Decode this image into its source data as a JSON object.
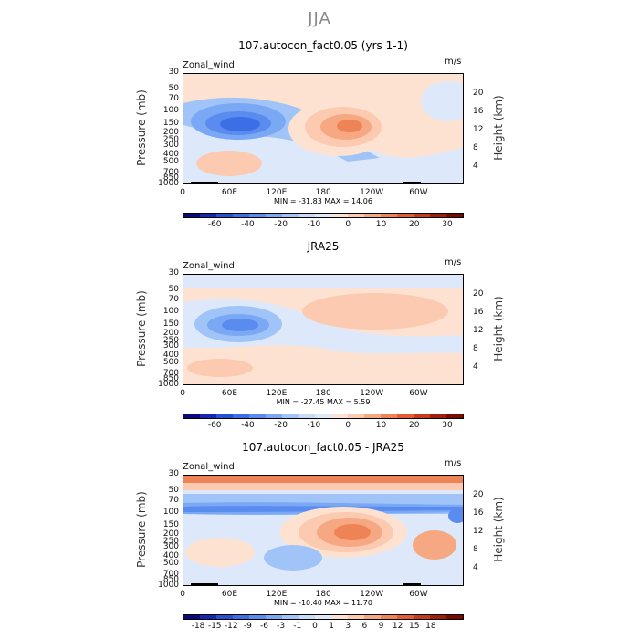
{
  "figure_title": "JJA",
  "chart_data": [
    {
      "type": "heatmap",
      "title": "107.autocon_fact0.05 (yrs 1-1)",
      "variable": "Zonal_wind",
      "units": "m/s",
      "ylabel": "Pressure (mb)",
      "y2label": "Height (km)",
      "x_ticks": [
        "0",
        "60E",
        "120E",
        "180",
        "120W",
        "60W"
      ],
      "y_ticks": [
        "30",
        "50",
        "70",
        "100",
        "150",
        "200",
        "250",
        "300",
        "400",
        "500",
        "700",
        "850",
        "1000"
      ],
      "y2_ticks": [
        "20",
        "16",
        "12",
        "8",
        "4"
      ],
      "min_max_label": "MIN = -31.83   MAX =  14.06",
      "min": -31.83,
      "max": 14.06,
      "colorbar_levels": [
        "-60",
        "-40",
        "-20",
        "-10",
        "0",
        "10",
        "20",
        "30"
      ],
      "colorbar_colors": [
        "#0a0a78",
        "#1428b4",
        "#2850d2",
        "#3c6ee6",
        "#5a8cf0",
        "#7aa8f5",
        "#a0c4f8",
        "#c8dcfa",
        "#dde9fb",
        "#fde2d2",
        "#fbcab0",
        "#f6a882",
        "#ee8456",
        "#e35c32",
        "#c83a1c",
        "#a01e0a",
        "#780a00"
      ]
    },
    {
      "type": "heatmap",
      "title": "JRA25",
      "variable": "Zonal_wind",
      "units": "m/s",
      "ylabel": "Pressure (mb)",
      "y2label": "Height (km)",
      "x_ticks": [
        "0",
        "60E",
        "120E",
        "180",
        "120W",
        "60W"
      ],
      "y_ticks": [
        "30",
        "50",
        "70",
        "100",
        "150",
        "200",
        "250",
        "300",
        "400",
        "500",
        "700",
        "850",
        "1000"
      ],
      "y2_ticks": [
        "20",
        "16",
        "12",
        "8",
        "4"
      ],
      "min_max_label": "MIN = -27.45   MAX =   5.59",
      "min": -27.45,
      "max": 5.59,
      "colorbar_levels": [
        "-60",
        "-40",
        "-20",
        "-10",
        "0",
        "10",
        "20",
        "30"
      ],
      "colorbar_colors": [
        "#0a0a78",
        "#1428b4",
        "#2850d2",
        "#3c6ee6",
        "#5a8cf0",
        "#7aa8f5",
        "#a0c4f8",
        "#c8dcfa",
        "#dde9fb",
        "#fde2d2",
        "#fbcab0",
        "#f6a882",
        "#ee8456",
        "#e35c32",
        "#c83a1c",
        "#a01e0a",
        "#780a00"
      ]
    },
    {
      "type": "heatmap",
      "title": "107.autocon_fact0.05 - JRA25",
      "variable": "Zonal_wind",
      "units": "m/s",
      "ylabel": "Pressure (mb)",
      "y2label": "Height (km)",
      "x_ticks": [
        "0",
        "60E",
        "120E",
        "180",
        "120W",
        "60W"
      ],
      "y_ticks": [
        "30",
        "50",
        "70",
        "100",
        "150",
        "200",
        "250",
        "300",
        "400",
        "500",
        "700",
        "850",
        "1000"
      ],
      "y2_ticks": [
        "20",
        "16",
        "12",
        "8",
        "4"
      ],
      "min_max_label": "MIN = -10.40   MAX =  11.70",
      "min": -10.4,
      "max": 11.7,
      "colorbar_levels": [
        "-18",
        "-15",
        "-12",
        "-9",
        "-6",
        "-3",
        "-1",
        "0",
        "1",
        "3",
        "6",
        "9",
        "12",
        "15",
        "18"
      ],
      "colorbar_colors": [
        "#0a0a78",
        "#1428b4",
        "#2850d2",
        "#3c6ee6",
        "#5a8cf0",
        "#7aa8f5",
        "#a0c4f8",
        "#c8dcfa",
        "#dde9fb",
        "#fde2d2",
        "#fbcab0",
        "#f6a882",
        "#ee8456",
        "#e35c32",
        "#c83a1c",
        "#a01e0a",
        "#780a00"
      ]
    }
  ]
}
